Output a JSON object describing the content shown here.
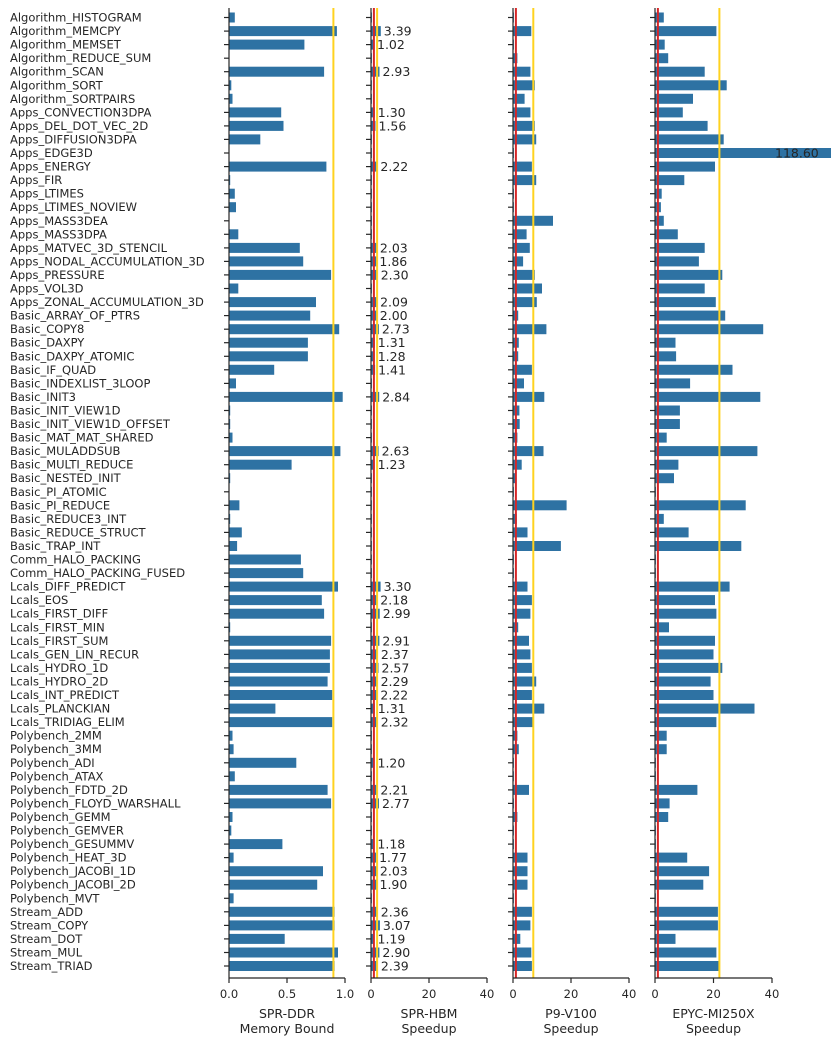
{
  "colors": {
    "bar": "#2e72a3",
    "red_line": "#d62728",
    "gold_line": "#ffd21f",
    "text": "#262626"
  },
  "chart_data": {
    "type": "bar",
    "orientation": "horizontal",
    "categories": [
      "Algorithm_HISTOGRAM",
      "Algorithm_MEMCPY",
      "Algorithm_MEMSET",
      "Algorithm_REDUCE_SUM",
      "Algorithm_SCAN",
      "Algorithm_SORT",
      "Algorithm_SORTPAIRS",
      "Apps_CONVECTION3DPA",
      "Apps_DEL_DOT_VEC_2D",
      "Apps_DIFFUSION3DPA",
      "Apps_EDGE3D",
      "Apps_ENERGY",
      "Apps_FIR",
      "Apps_LTIMES",
      "Apps_LTIMES_NOVIEW",
      "Apps_MASS3DEA",
      "Apps_MASS3DPA",
      "Apps_MATVEC_3D_STENCIL",
      "Apps_NODAL_ACCUMULATION_3D",
      "Apps_PRESSURE",
      "Apps_VOL3D",
      "Apps_ZONAL_ACCUMULATION_3D",
      "Basic_ARRAY_OF_PTRS",
      "Basic_COPY8",
      "Basic_DAXPY",
      "Basic_DAXPY_ATOMIC",
      "Basic_IF_QUAD",
      "Basic_INDEXLIST_3LOOP",
      "Basic_INIT3",
      "Basic_INIT_VIEW1D",
      "Basic_INIT_VIEW1D_OFFSET",
      "Basic_MAT_MAT_SHARED",
      "Basic_MULADDSUB",
      "Basic_MULTI_REDUCE",
      "Basic_NESTED_INIT",
      "Basic_PI_ATOMIC",
      "Basic_PI_REDUCE",
      "Basic_REDUCE3_INT",
      "Basic_REDUCE_STRUCT",
      "Basic_TRAP_INT",
      "Comm_HALO_PACKING",
      "Comm_HALO_PACKING_FUSED",
      "Lcals_DIFF_PREDICT",
      "Lcals_EOS",
      "Lcals_FIRST_DIFF",
      "Lcals_FIRST_MIN",
      "Lcals_FIRST_SUM",
      "Lcals_GEN_LIN_RECUR",
      "Lcals_HYDRO_1D",
      "Lcals_HYDRO_2D",
      "Lcals_INT_PREDICT",
      "Lcals_PLANCKIAN",
      "Lcals_TRIDIAG_ELIM",
      "Polybench_2MM",
      "Polybench_3MM",
      "Polybench_ADI",
      "Polybench_ATAX",
      "Polybench_FDTD_2D",
      "Polybench_FLOYD_WARSHALL",
      "Polybench_GEMM",
      "Polybench_GEMVER",
      "Polybench_GESUMMV",
      "Polybench_HEAT_3D",
      "Polybench_JACOBI_1D",
      "Polybench_JACOBI_2D",
      "Polybench_MVT",
      "Stream_ADD",
      "Stream_COPY",
      "Stream_DOT",
      "Stream_MUL",
      "Stream_TRIAD"
    ],
    "panels": [
      {
        "id": "spr-ddr",
        "xlabel": "SPR-DDR\nMemory Bound",
        "xlim": [
          0,
          1.0
        ],
        "ticks": [
          0,
          0.5,
          1.0
        ],
        "tick_labels": [
          "0.0",
          "0.5",
          "1.0"
        ],
        "ref_lines": [
          {
            "value": 0.9,
            "color": "gold"
          }
        ],
        "values": [
          0.05,
          0.93,
          0.65,
          0,
          0.82,
          0.02,
          0.03,
          0.45,
          0.47,
          0.27,
          0,
          0.84,
          0.01,
          0.05,
          0.06,
          0,
          0.08,
          0.61,
          0.64,
          0.88,
          0.08,
          0.75,
          0.7,
          0.95,
          0.68,
          0.68,
          0.39,
          0.06,
          0.98,
          0.01,
          0.01,
          0.03,
          0.96,
          0.54,
          0.01,
          0,
          0.09,
          0.01,
          0.11,
          0.07,
          0.62,
          0.64,
          0.94,
          0.8,
          0.82,
          0.01,
          0.88,
          0.87,
          0.87,
          0.85,
          0.89,
          0.4,
          0.89,
          0.03,
          0.04,
          0.58,
          0.05,
          0.85,
          0.88,
          0.03,
          0.02,
          0.46,
          0.04,
          0.81,
          0.76,
          0.04,
          0.91,
          0.91,
          0.48,
          0.94,
          0.91
        ]
      },
      {
        "id": "spr-hbm",
        "xlabel": "SPR-HBM\nSpeedup",
        "xlim": [
          0,
          40
        ],
        "ticks": [
          0,
          20,
          40
        ],
        "tick_labels": [
          "0",
          "20",
          "40"
        ],
        "ref_lines": [
          {
            "value": 1,
            "color": "red"
          },
          {
            "value": 2.1,
            "color": "gold"
          }
        ],
        "values": [
          0.3,
          3.39,
          1.02,
          0.3,
          2.93,
          0.3,
          0.3,
          1.3,
          1.56,
          0.3,
          0.3,
          2.22,
          0.3,
          0.3,
          0.3,
          0.3,
          0.3,
          2.03,
          1.86,
          2.3,
          0.3,
          2.09,
          2.0,
          2.73,
          1.31,
          1.28,
          1.41,
          0.3,
          2.84,
          0.3,
          0.3,
          0.3,
          2.63,
          1.23,
          0.3,
          0.3,
          0.3,
          0.3,
          0.3,
          0.3,
          0.3,
          0.3,
          3.3,
          2.18,
          2.99,
          0.3,
          2.91,
          2.37,
          2.57,
          2.29,
          2.22,
          1.31,
          2.32,
          0.3,
          0.3,
          1.2,
          0.3,
          2.21,
          2.77,
          0.3,
          0.3,
          1.18,
          1.77,
          2.03,
          1.9,
          0.3,
          2.36,
          3.07,
          1.19,
          2.9,
          2.39
        ],
        "data_labels": [
          "",
          "3.39",
          "1.02",
          "",
          "2.93",
          "",
          "",
          "1.30",
          "1.56",
          "",
          "",
          "2.22",
          "",
          "",
          "",
          "",
          "",
          "2.03",
          "1.86",
          "2.30",
          "",
          "2.09",
          "2.00",
          "2.73",
          "1.31",
          "1.28",
          "1.41",
          "",
          "2.84",
          "",
          "",
          "",
          "2.63",
          "1.23",
          "",
          "",
          "",
          "",
          "",
          "",
          "",
          "",
          "3.30",
          "2.18",
          "2.99",
          "",
          "2.91",
          "2.37",
          "2.57",
          "2.29",
          "2.22",
          "1.31",
          "2.32",
          "",
          "",
          "1.20",
          "",
          "2.21",
          "2.77",
          "",
          "",
          "1.18",
          "1.77",
          "2.03",
          "1.90",
          "",
          "2.36",
          "3.07",
          "1.19",
          "2.90",
          "2.39"
        ]
      },
      {
        "id": "p9-v100",
        "xlabel": "P9-V100\nSpeedup",
        "xlim": [
          0,
          40
        ],
        "ticks": [
          0,
          20,
          40
        ],
        "tick_labels": [
          "0",
          "20",
          "40"
        ],
        "ref_lines": [
          {
            "value": 1,
            "color": "red"
          },
          {
            "value": 7,
            "color": "gold"
          }
        ],
        "values": [
          0.3,
          6.3,
          0.3,
          1.5,
          6.0,
          7.5,
          4.0,
          6.0,
          7.5,
          8.0,
          0.3,
          6.5,
          8.0,
          0.3,
          0.3,
          13.8,
          4.7,
          5.8,
          3.5,
          7.5,
          10.0,
          8.2,
          1.8,
          11.5,
          2.0,
          1.8,
          6.5,
          3.8,
          10.8,
          2.2,
          2.3,
          1.5,
          10.5,
          3.0,
          1.2,
          0.3,
          18.5,
          1.3,
          5.0,
          16.5,
          0.3,
          0.3,
          5.0,
          6.5,
          6.0,
          1.8,
          5.5,
          6.0,
          6.5,
          8.0,
          6.5,
          10.8,
          7.0,
          1.5,
          2.0,
          0.3,
          0.3,
          5.5,
          0.3,
          1.5,
          0.3,
          0.3,
          5.0,
          5.0,
          5.0,
          0.3,
          6.5,
          6.0,
          2.5,
          6.3,
          6.5
        ]
      },
      {
        "id": "epyc-mi250x",
        "xlabel": "EPYC-MI250X\nSpeedup",
        "xlim": [
          0,
          40
        ],
        "ticks": [
          0,
          20,
          40
        ],
        "tick_labels": [
          "0",
          "20",
          "40"
        ],
        "ref_lines": [
          {
            "value": 1,
            "color": "red"
          },
          {
            "value": 22,
            "color": "gold"
          }
        ],
        "values": [
          3.0,
          21.0,
          3.3,
          4.5,
          17.0,
          24.5,
          13.0,
          9.5,
          18.0,
          23.5,
          118.6,
          20.5,
          10.0,
          2.3,
          2.0,
          3.0,
          7.8,
          17.0,
          15.0,
          23.0,
          17.0,
          20.8,
          24.0,
          37.0,
          7.0,
          7.2,
          26.5,
          12.0,
          36.0,
          8.5,
          8.5,
          4.0,
          35.0,
          8.0,
          6.5,
          0.3,
          31.0,
          3.0,
          11.5,
          29.5,
          0.3,
          0.3,
          25.5,
          20.5,
          21.0,
          4.8,
          20.5,
          20.0,
          23.0,
          19.0,
          20.0,
          34.0,
          21.0,
          4.0,
          4.0,
          0.3,
          0.3,
          14.5,
          5.0,
          4.5,
          0.3,
          0.3,
          11.0,
          18.5,
          16.5,
          0.3,
          21.5,
          21.5,
          7.0,
          21.0,
          22.0
        ],
        "data_labels": [
          "",
          "",
          "",
          "",
          "",
          "",
          "",
          "",
          "",
          "",
          "118.60",
          "",
          "",
          "",
          "",
          "",
          "",
          "",
          "",
          "",
          "",
          "",
          "",
          "",
          "",
          "",
          "",
          "",
          "",
          "",
          "",
          "",
          "",
          "",
          "",
          "",
          "",
          "",
          "",
          "",
          "",
          "",
          "",
          "",
          "",
          "",
          "",
          "",
          "",
          "",
          "",
          "",
          "",
          "",
          "",
          "",
          "",
          "",
          "",
          "",
          "",
          "",
          "",
          "",
          "",
          "",
          "",
          "",
          "",
          "",
          ""
        ]
      }
    ]
  }
}
